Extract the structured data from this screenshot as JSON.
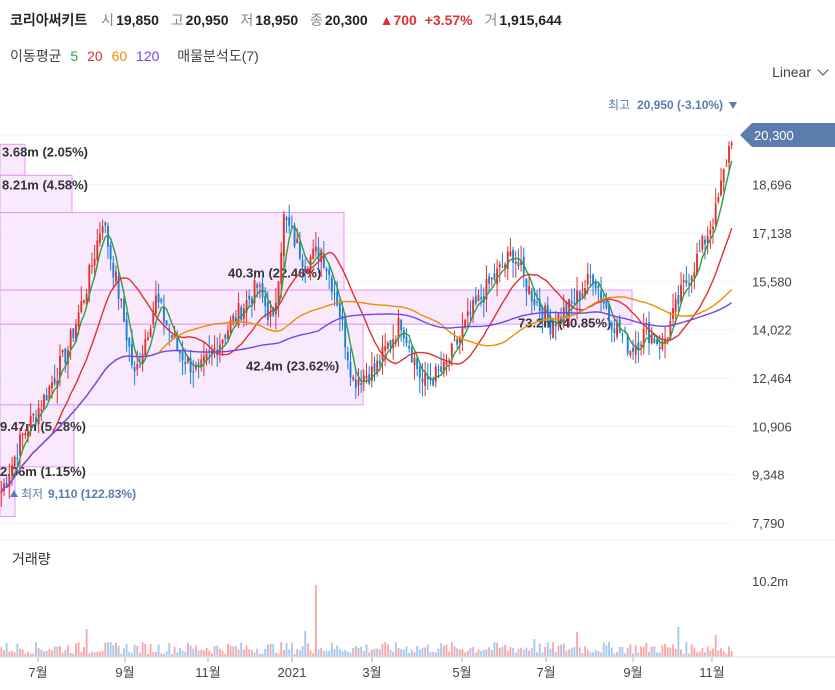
{
  "header": {
    "name": "코리아써키트",
    "open_label": "시",
    "open": "19,850",
    "high_label": "고",
    "high": "20,950",
    "low_label": "저",
    "low": "18,950",
    "close_label": "종",
    "close": "20,300",
    "change": "▲700",
    "change_pct": "+3.57%",
    "volume_label": "거",
    "volume": "1,915,644"
  },
  "indicators": {
    "ma_label": "이동평균",
    "ma": [
      {
        "period": "5",
        "color": "#2f9e44"
      },
      {
        "period": "20",
        "color": "#e03131"
      },
      {
        "period": "60",
        "color": "#f08c00"
      },
      {
        "period": "120",
        "color": "#7048e8"
      }
    ],
    "vp_label": "매물분석도(7)"
  },
  "scale": {
    "label": "Linear"
  },
  "colors": {
    "up": "#e03131",
    "down": "#1c7ed6",
    "vp_fill": "#f3d9fa",
    "vp_stroke": "#e599f7",
    "badge": "#5c7cad"
  },
  "chart_data": {
    "type": "candlestick",
    "y_ticks": [
      "20,300",
      "18,696",
      "17,138",
      "15,580",
      "14,022",
      "12,464",
      "10,906",
      "9,348",
      "7,790"
    ],
    "ylim": [
      7790,
      20950
    ],
    "current_price": "20,300",
    "max_label": "최고",
    "max_value": "20,950 (-3.10%)",
    "min_label": "최저",
    "min_value": "9,110 (122.83%)",
    "volume_title": "거래량",
    "volume_tick": "10.2m",
    "x_labels": [
      "7월",
      "9월",
      "11월",
      "2021",
      "3월",
      "5월",
      "7월",
      "9월",
      "11월"
    ],
    "volume_profile": [
      {
        "label": "3.68m (2.05%)",
        "low": 19000,
        "high": 20000,
        "value_pct": 2.05
      },
      {
        "label": "8.21m (4.58%)",
        "low": 17800,
        "high": 19000,
        "value_pct": 4.58
      },
      {
        "label": "40.3m (22.46%)",
        "low": 15300,
        "high": 17800,
        "value_pct": 22.46
      },
      {
        "label": "73.2m (40.85%)",
        "low": 14200,
        "high": 15300,
        "value_pct": 40.85
      },
      {
        "label": "42.4m (23.62%)",
        "low": 11600,
        "high": 14200,
        "value_pct": 23.62
      },
      {
        "label": "9.47m (5.28%)",
        "low": 9600,
        "high": 11600,
        "value_pct": 5.28
      },
      {
        "label": "2.06m (1.15%)",
        "low": 8000,
        "high": 9600,
        "value_pct": 1.15
      }
    ],
    "series": [
      {
        "name": "5",
        "color": "#2f9e44"
      },
      {
        "name": "20",
        "color": "#e03131"
      },
      {
        "name": "60",
        "color": "#f08c00"
      },
      {
        "name": "120",
        "color": "#7048e8"
      }
    ]
  }
}
